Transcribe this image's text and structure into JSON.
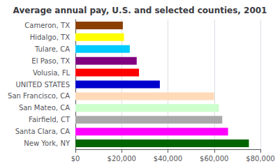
{
  "chart_data": {
    "type": "bar",
    "orientation": "horizontal",
    "title": "Average annual pay, U.S. and selected counties, 2001",
    "categories": [
      "Cameron, TX",
      "Hidalgo, TX",
      "Tulare, CA",
      "El Paso, TX",
      "Volusia, FL",
      "UNITED STATES",
      "San Francisco, CA",
      "San Mateo, CA",
      "Fairfield, CT",
      "Santa Clara, CA",
      "New York, NY"
    ],
    "values": [
      20500,
      21000,
      23500,
      26500,
      27500,
      36500,
      60000,
      62000,
      63500,
      66000,
      75000
    ],
    "colors": [
      "#8B4000",
      "#FFFF00",
      "#00CCFF",
      "#800080",
      "#FF0000",
      "#0000CC",
      "#FFDAB9",
      "#CCFFCC",
      "#A9A9A9",
      "#FF00FF",
      "#006400"
    ],
    "xlim": [
      0,
      80000
    ],
    "xticks": [
      {
        "value": 0,
        "label": "$0"
      },
      {
        "value": 20000,
        "label": "$20,000"
      },
      {
        "value": 40000,
        "label": "$40,000"
      },
      {
        "value": 60000,
        "label": "$60,000"
      },
      {
        "value": 80000,
        "label": "$80,000"
      }
    ],
    "grid": true
  }
}
